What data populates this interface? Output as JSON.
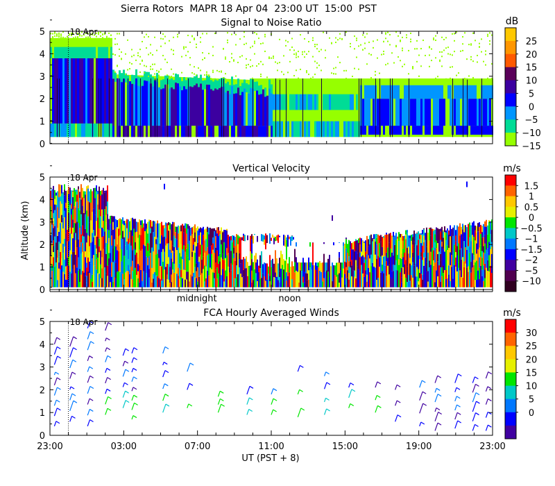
{
  "header": {
    "title": "Sierra Rotors  MAPR 18 Apr 04  23:00 UT  15:00  PST"
  },
  "chart_data": [
    {
      "type": "heatmap",
      "title": "Signal to Noise Ratio",
      "ylim": [
        0,
        5
      ],
      "y_ticks": [
        "0",
        "1",
        "2",
        "3",
        "4",
        "5"
      ],
      "date_marker": "18 Apr",
      "colorbar": {
        "unit": "dB",
        "labels": [
          "25",
          "20",
          "15",
          "10",
          "5",
          "0",
          "−5",
          "−10",
          "−15"
        ],
        "colors": [
          "#ffc800",
          "#ff9600",
          "#ff5a00",
          "#5a005a",
          "#3c00a0",
          "#0000ff",
          "#0096ff",
          "#00dc96",
          "#96ff00"
        ]
      }
    },
    {
      "type": "heatmap",
      "title": "Vertical Velocity",
      "ylabel": "Altitude (km)",
      "ylim": [
        0,
        5
      ],
      "y_ticks": [
        "0",
        "1",
        "2",
        "3",
        "4",
        "5"
      ],
      "date_marker": "18 Apr",
      "time_markers": [
        "midnight",
        "noon"
      ],
      "colorbar": {
        "unit": "m/s",
        "labels": [
          "1.5",
          "1",
          "0.5",
          "0",
          "−0.5",
          "−1",
          "−1.5",
          "−2",
          "−5",
          "−10"
        ],
        "colors": [
          "#ff0000",
          "#ff6400",
          "#ffc800",
          "#e6f000",
          "#00e600",
          "#00c8c8",
          "#0078ff",
          "#0000ff",
          "#4000a0",
          "#500050",
          "#300020"
        ]
      }
    },
    {
      "type": "scatter",
      "title": "FCA Hourly Averaged Winds",
      "ylim": [
        0,
        5
      ],
      "y_ticks": [
        "0",
        "1",
        "2",
        "3",
        "4",
        "5"
      ],
      "date_marker": "18 Apr",
      "xlabel": "UT  (PST + 8)",
      "x_ticks": [
        "23:00",
        "03:00",
        "07:00",
        "11:00",
        "15:00",
        "19:00",
        "23:00"
      ],
      "colorbar": {
        "unit": "m/s",
        "labels": [
          "30",
          "25",
          "20",
          "15",
          "10",
          "5",
          "0"
        ],
        "colors": [
          "#ff0000",
          "#ff6400",
          "#ffc800",
          "#e6f000",
          "#00e600",
          "#00c8c8",
          "#0078ff",
          "#0000ff",
          "#4000a0"
        ]
      }
    }
  ]
}
